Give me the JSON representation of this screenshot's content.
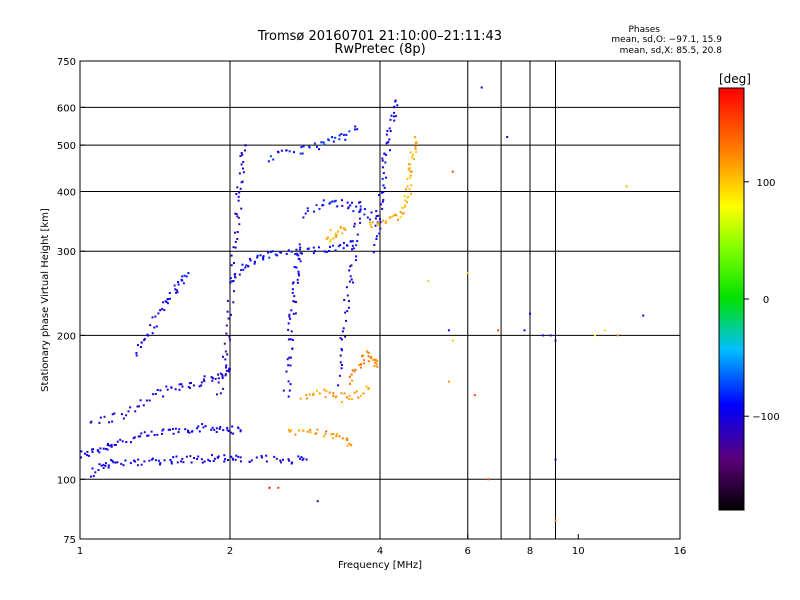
{
  "header": {
    "title_line1": "Tromsø 20160701 21:10:00–21:11:43",
    "title_line2": "RwPretec (8p)",
    "phases_title": "Phases",
    "phases_line1": "mean, sd,O: −97.1, 15.9",
    "phases_line2": "mean, sd,X:  85.5, 20.8"
  },
  "colorbar": {
    "label": "[deg]",
    "ticks": [
      "100",
      "0",
      "−100"
    ],
    "tick_values": [
      100,
      0,
      -100
    ],
    "range": [
      -180,
      180
    ]
  },
  "chart_data": {
    "type": "scatter",
    "title": "Tromsø 20160701 21:10:00–21:11:43",
    "subtitle": "RwPretec (8p)",
    "xlabel": "Frequency [MHz]",
    "ylabel": "Stationary phase Virtual Height [km]",
    "xscale": "log",
    "yscale": "log",
    "xlim": [
      1,
      16
    ],
    "ylim": [
      75,
      750
    ],
    "xticks": [
      1,
      2,
      4,
      6,
      8,
      10,
      16
    ],
    "xtick_labels": [
      "1",
      "2",
      "4",
      "6",
      "8",
      "10",
      "16"
    ],
    "yticks": [
      75,
      100,
      200,
      300,
      400,
      500,
      600,
      750
    ],
    "ytick_labels": [
      "75",
      "100",
      "200",
      "300",
      "400",
      "500",
      "600",
      "750"
    ],
    "grid_x": [
      2,
      4,
      6,
      7,
      8,
      9
    ],
    "grid_y": [
      100,
      200,
      300,
      400,
      500,
      600
    ],
    "grid": true,
    "color_encoding": "phase in degrees",
    "traces": [
      {
        "phase": -100,
        "points": [
          [
            1.0,
            112
          ],
          [
            1.05,
            114
          ],
          [
            1.1,
            116
          ],
          [
            1.15,
            118
          ],
          [
            1.2,
            120
          ],
          [
            1.3,
            122
          ],
          [
            1.4,
            124
          ],
          [
            1.5,
            126
          ],
          [
            1.6,
            127
          ],
          [
            1.7,
            128
          ],
          [
            1.8,
            128
          ],
          [
            1.9,
            128
          ],
          [
            2.0,
            127
          ],
          [
            2.1,
            126
          ]
        ]
      },
      {
        "phase": -100,
        "points": [
          [
            1.05,
            103
          ],
          [
            1.1,
            106
          ],
          [
            1.15,
            108
          ],
          [
            1.2,
            108
          ],
          [
            1.3,
            109
          ],
          [
            1.4,
            109
          ],
          [
            1.5,
            110
          ],
          [
            1.6,
            110
          ],
          [
            1.7,
            110
          ],
          [
            1.8,
            111
          ],
          [
            1.9,
            111
          ],
          [
            2.0,
            110
          ],
          [
            2.1,
            110
          ],
          [
            2.3,
            110
          ],
          [
            2.5,
            110
          ],
          [
            2.7,
            110
          ],
          [
            2.85,
            110
          ]
        ]
      },
      {
        "phase": -105,
        "points": [
          [
            1.05,
            132
          ],
          [
            1.15,
            134
          ],
          [
            1.25,
            138
          ],
          [
            1.35,
            145
          ],
          [
            1.45,
            152
          ],
          [
            1.55,
            155
          ],
          [
            1.65,
            158
          ],
          [
            1.75,
            160
          ],
          [
            1.85,
            163
          ],
          [
            1.95,
            166
          ],
          [
            2.0,
            170
          ]
        ]
      },
      {
        "phase": -95,
        "points": [
          [
            1.3,
            185
          ],
          [
            1.35,
            195
          ],
          [
            1.4,
            210
          ],
          [
            1.45,
            225
          ],
          [
            1.5,
            238
          ],
          [
            1.55,
            248
          ],
          [
            1.6,
            258
          ],
          [
            1.65,
            270
          ]
        ]
      },
      {
        "phase": -110,
        "points": [
          [
            1.9,
            150
          ],
          [
            1.95,
            170
          ],
          [
            1.98,
            190
          ],
          [
            2.0,
            220
          ],
          [
            2.02,
            260
          ],
          [
            2.04,
            300
          ],
          [
            2.06,
            340
          ],
          [
            2.08,
            380
          ],
          [
            2.1,
            420
          ],
          [
            2.12,
            460
          ],
          [
            2.15,
            500
          ]
        ]
      },
      {
        "phase": -90,
        "points": [
          [
            2.0,
            260
          ],
          [
            2.1,
            275
          ],
          [
            2.2,
            285
          ],
          [
            2.3,
            290
          ],
          [
            2.4,
            295
          ],
          [
            2.6,
            297
          ],
          [
            2.8,
            298
          ],
          [
            3.0,
            300
          ],
          [
            3.2,
            305
          ],
          [
            3.4,
            310
          ],
          [
            3.6,
            315
          ]
        ]
      },
      {
        "phase": -100,
        "points": [
          [
            2.6,
            150
          ],
          [
            2.62,
            170
          ],
          [
            2.64,
            190
          ],
          [
            2.66,
            210
          ],
          [
            2.68,
            230
          ],
          [
            2.7,
            250
          ],
          [
            2.72,
            270
          ],
          [
            2.74,
            290
          ],
          [
            2.76,
            310
          ]
        ]
      },
      {
        "phase": -85,
        "points": [
          [
            2.4,
            470
          ],
          [
            2.6,
            480
          ],
          [
            2.8,
            490
          ],
          [
            3.0,
            500
          ],
          [
            3.2,
            510
          ],
          [
            3.4,
            520
          ],
          [
            3.6,
            540
          ]
        ]
      },
      {
        "phase": -105,
        "points": [
          [
            3.3,
            160
          ],
          [
            3.35,
            185
          ],
          [
            3.4,
            210
          ],
          [
            3.45,
            240
          ],
          [
            3.5,
            270
          ],
          [
            3.55,
            300
          ],
          [
            3.6,
            340
          ],
          [
            3.65,
            380
          ]
        ]
      },
      {
        "phase": -90,
        "points": [
          [
            2.8,
            360
          ],
          [
            3.0,
            375
          ],
          [
            3.2,
            380
          ],
          [
            3.4,
            375
          ],
          [
            3.6,
            368
          ],
          [
            3.8,
            360
          ],
          [
            4.0,
            350
          ]
        ]
      },
      {
        "phase": -95,
        "points": [
          [
            3.9,
            300
          ],
          [
            3.95,
            340
          ],
          [
            4.0,
            380
          ],
          [
            4.05,
            420
          ],
          [
            4.1,
            460
          ],
          [
            4.15,
            500
          ],
          [
            4.2,
            540
          ],
          [
            4.25,
            580
          ],
          [
            4.3,
            620
          ]
        ]
      },
      {
        "phase": 110,
        "points": [
          [
            3.8,
            340
          ],
          [
            4.0,
            345
          ],
          [
            4.2,
            350
          ],
          [
            4.4,
            360
          ],
          [
            4.5,
            380
          ],
          [
            4.55,
            400
          ],
          [
            4.6,
            430
          ],
          [
            4.65,
            460
          ],
          [
            4.68,
            490
          ],
          [
            4.7,
            520
          ]
        ]
      },
      {
        "phase": 120,
        "points": [
          [
            2.6,
            125
          ],
          [
            2.8,
            128
          ],
          [
            3.0,
            126
          ],
          [
            3.2,
            124
          ],
          [
            3.4,
            120
          ],
          [
            3.5,
            118
          ]
        ]
      },
      {
        "phase": 115,
        "points": [
          [
            2.8,
            150
          ],
          [
            3.0,
            152
          ],
          [
            3.2,
            150
          ],
          [
            3.4,
            148
          ],
          [
            3.6,
            150
          ],
          [
            3.8,
            155
          ]
        ]
      },
      {
        "phase": 125,
        "points": [
          [
            3.5,
            160
          ],
          [
            3.6,
            170
          ],
          [
            3.7,
            178
          ],
          [
            3.8,
            182
          ],
          [
            3.9,
            178
          ],
          [
            3.95,
            172
          ]
        ]
      },
      {
        "phase": 105,
        "points": [
          [
            3.1,
            315
          ],
          [
            3.2,
            325
          ],
          [
            3.3,
            330
          ],
          [
            3.4,
            335
          ]
        ]
      }
    ],
    "scattered_points": [
      {
        "x": 5.6,
        "y": 440,
        "phase": 150
      },
      {
        "x": 6.4,
        "y": 660,
        "phase": -100
      },
      {
        "x": 7.2,
        "y": 520,
        "phase": -100
      },
      {
        "x": 12.5,
        "y": 410,
        "phase": 110
      },
      {
        "x": 5.5,
        "y": 205,
        "phase": -100
      },
      {
        "x": 5.6,
        "y": 195,
        "phase": 100
      },
      {
        "x": 6.9,
        "y": 205,
        "phase": 150
      },
      {
        "x": 7.8,
        "y": 205,
        "phase": -100
      },
      {
        "x": 8.0,
        "y": 222,
        "phase": -100
      },
      {
        "x": 8.5,
        "y": 200,
        "phase": -100
      },
      {
        "x": 8.8,
        "y": 200,
        "phase": -100
      },
      {
        "x": 9.0,
        "y": 195,
        "phase": -100
      },
      {
        "x": 10.8,
        "y": 200,
        "phase": 80
      },
      {
        "x": 11.3,
        "y": 205,
        "phase": 60
      },
      {
        "x": 12.0,
        "y": 200,
        "phase": 130
      },
      {
        "x": 13.5,
        "y": 220,
        "phase": -100
      },
      {
        "x": 9.0,
        "y": 110,
        "phase": -100
      },
      {
        "x": 6.6,
        "y": 100,
        "phase": 150
      },
      {
        "x": 2.4,
        "y": 96,
        "phase": 180
      },
      {
        "x": 2.5,
        "y": 96,
        "phase": 150
      },
      {
        "x": 3.0,
        "y": 90,
        "phase": -120
      },
      {
        "x": 9.0,
        "y": 82,
        "phase": 120
      },
      {
        "x": 5.0,
        "y": 260,
        "phase": 100
      },
      {
        "x": 5.5,
        "y": 160,
        "phase": 120
      },
      {
        "x": 6.0,
        "y": 270,
        "phase": 100
      },
      {
        "x": 6.2,
        "y": 150,
        "phase": 150
      }
    ]
  }
}
